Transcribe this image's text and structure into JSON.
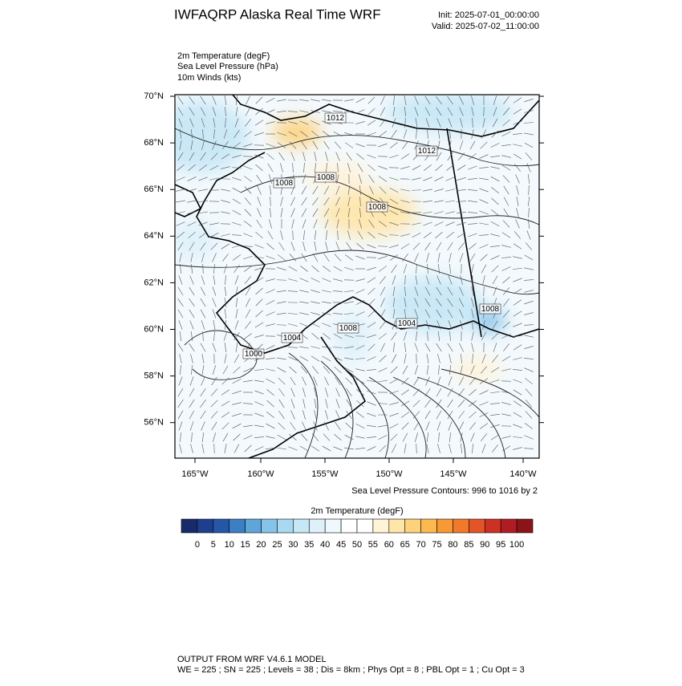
{
  "header": {
    "title": "IWFAQRP Alaska Real Time WRF",
    "init": "Init: 2025-07-01_00:00:00",
    "valid": "Valid: 2025-07-02_11:00:00"
  },
  "fields": [
    "2m Temperature   (degF)",
    "Sea Level Pressure   (hPa)",
    "10m Winds   (kts)"
  ],
  "map": {
    "lat_labels": [
      "70°N",
      "68°N",
      "66°N",
      "64°N",
      "62°N",
      "60°N",
      "58°N",
      "56°N"
    ],
    "lon_labels": [
      "165°W",
      "160°W",
      "155°W",
      "150°W",
      "145°W",
      "140°W"
    ],
    "contour_labels": [
      1012,
      1012,
      1008,
      1008,
      1008,
      1008,
      1008,
      1004,
      1004,
      1000
    ],
    "contour_note": "Sea Level Pressure Contours: 996 to 1016 by 2"
  },
  "colorbar": {
    "title": "2m Temperature  (degF)",
    "ticks": [
      0,
      5,
      10,
      15,
      20,
      25,
      30,
      35,
      40,
      45,
      50,
      55,
      60,
      65,
      70,
      75,
      80,
      85,
      90,
      95,
      100
    ],
    "colors": [
      "#182a6a",
      "#1e3f8e",
      "#2457a8",
      "#3b7fc4",
      "#5ea6d9",
      "#86c3e9",
      "#a8d9f2",
      "#c6e7f6",
      "#def1fa",
      "#eef8fd",
      "#ffffff",
      "#ffffff",
      "#fff3d8",
      "#ffe5a8",
      "#fdd27b",
      "#fbb94f",
      "#f79a35",
      "#f17a2a",
      "#e35427",
      "#cb3224",
      "#af1d22",
      "#8a1418"
    ]
  },
  "footer": {
    "line1": "OUTPUT FROM WRF V4.6.1 MODEL",
    "line2": "WE = 225 ; SN = 225 ; Levels = 38 ; Dis = 8km ; Phys Opt = 8 ; PBL Opt = 1 ; Cu Opt = 3"
  }
}
